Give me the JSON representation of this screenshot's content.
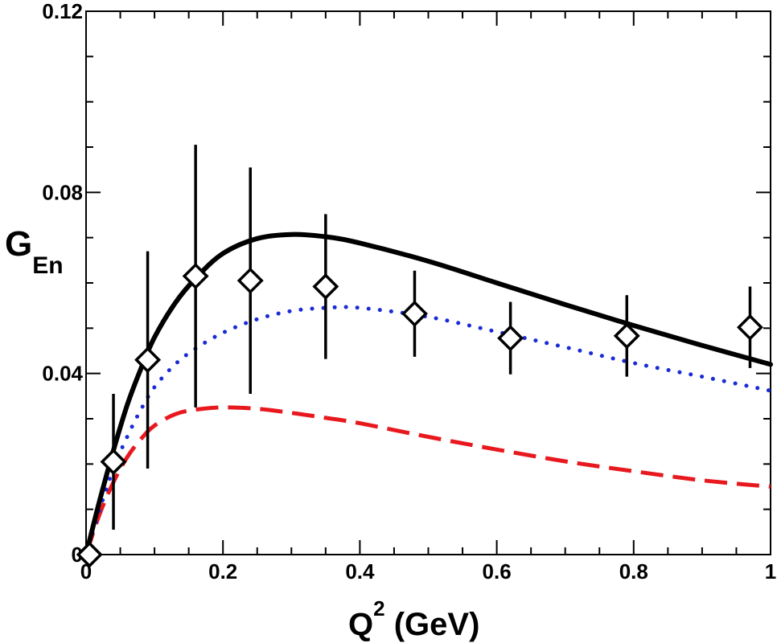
{
  "chart_data": {
    "type": "line",
    "title": "",
    "xlabel": {
      "main": "Q",
      "sup": "2",
      "rest": " (GeV)"
    },
    "ylabel": {
      "main": "G",
      "sub": "En"
    },
    "xlim": [
      0,
      1
    ],
    "ylim": [
      0,
      0.12
    ],
    "x_ticks": [
      0,
      0.2,
      0.4,
      0.6,
      0.8,
      1
    ],
    "x_tick_labels": [
      "0",
      "0.2",
      "0.4",
      "0.6",
      "0.8",
      "1"
    ],
    "y_ticks": [
      0,
      0.04,
      0.08,
      0.12
    ],
    "y_tick_labels": [
      "0",
      "0.04",
      "0.08",
      "0.12"
    ],
    "series": [
      {
        "name": "solid",
        "style": "solid",
        "color": "#000000",
        "x": [
          0,
          0.02,
          0.04,
          0.06,
          0.08,
          0.1,
          0.13,
          0.16,
          0.2,
          0.25,
          0.3,
          0.35,
          0.4,
          0.5,
          0.6,
          0.7,
          0.8,
          0.9,
          1.0
        ],
        "y": [
          0,
          0.012,
          0.023,
          0.033,
          0.041,
          0.048,
          0.0555,
          0.061,
          0.0665,
          0.0698,
          0.0707,
          0.0702,
          0.0688,
          0.0648,
          0.06,
          0.0552,
          0.0506,
          0.0462,
          0.042
        ]
      },
      {
        "name": "dotted",
        "style": "dotted",
        "color": "#1a2bd6",
        "x": [
          0,
          0.02,
          0.04,
          0.06,
          0.08,
          0.1,
          0.13,
          0.16,
          0.2,
          0.25,
          0.3,
          0.35,
          0.4,
          0.5,
          0.6,
          0.7,
          0.8,
          0.9,
          1.0
        ],
        "y": [
          0,
          0.01,
          0.019,
          0.026,
          0.032,
          0.037,
          0.042,
          0.0455,
          0.049,
          0.052,
          0.0538,
          0.0545,
          0.0545,
          0.0525,
          0.0492,
          0.0458,
          0.0423,
          0.0393,
          0.0362
        ]
      },
      {
        "name": "dashed",
        "style": "dashed",
        "color": "#e8191e",
        "x": [
          0,
          0.02,
          0.04,
          0.06,
          0.08,
          0.1,
          0.13,
          0.16,
          0.2,
          0.25,
          0.3,
          0.35,
          0.4,
          0.5,
          0.6,
          0.7,
          0.8,
          0.9,
          1.0
        ],
        "y": [
          0,
          0.009,
          0.016,
          0.0215,
          0.0255,
          0.0285,
          0.031,
          0.032,
          0.0325,
          0.0322,
          0.0313,
          0.0302,
          0.029,
          0.026,
          0.0232,
          0.0206,
          0.0184,
          0.0164,
          0.015
        ]
      }
    ],
    "data_points": {
      "name": "data",
      "marker": "diamond",
      "x": [
        0.005,
        0.04,
        0.09,
        0.16,
        0.24,
        0.35,
        0.48,
        0.62,
        0.79,
        0.97
      ],
      "y": [
        0.0,
        0.0205,
        0.043,
        0.0615,
        0.0605,
        0.0592,
        0.0532,
        0.0478,
        0.0483,
        0.0502
      ],
      "err": [
        0.0,
        0.015,
        0.024,
        0.029,
        0.025,
        0.016,
        0.0095,
        0.008,
        0.009,
        0.009
      ]
    }
  }
}
